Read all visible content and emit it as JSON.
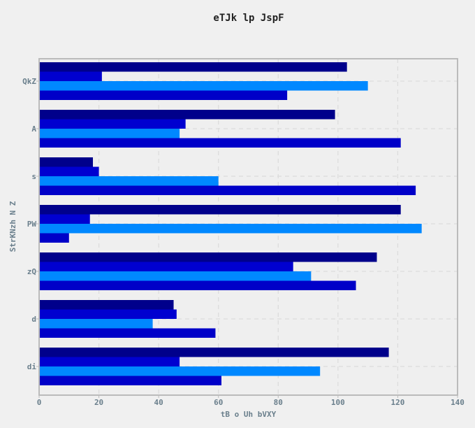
{
  "chart_data": {
    "type": "bar",
    "orientation": "horizontal",
    "title": "eTJk lp JspF",
    "xlabel": "tB o Uh bVXY",
    "ylabel": "StrKNzh N Z",
    "xlim": [
      0,
      140
    ],
    "xticks": [
      0,
      20,
      40,
      60,
      80,
      100,
      120,
      140
    ],
    "grid": true,
    "categories": [
      "QkZ",
      "A",
      "s",
      "PW",
      "zQ",
      "d",
      "di"
    ],
    "series": [
      {
        "color": "#00008b",
        "values": [
          103,
          99,
          18,
          121,
          113,
          45,
          117
        ]
      },
      {
        "color": "#0000d0",
        "values": [
          21,
          49,
          20,
          17,
          85,
          46,
          47
        ]
      },
      {
        "color": "#0088ff",
        "values": [
          110,
          47,
          60,
          128,
          91,
          38,
          94
        ]
      },
      {
        "color": "#0000c8",
        "values": [
          83,
          121,
          126,
          10,
          106,
          59,
          61
        ]
      }
    ]
  }
}
